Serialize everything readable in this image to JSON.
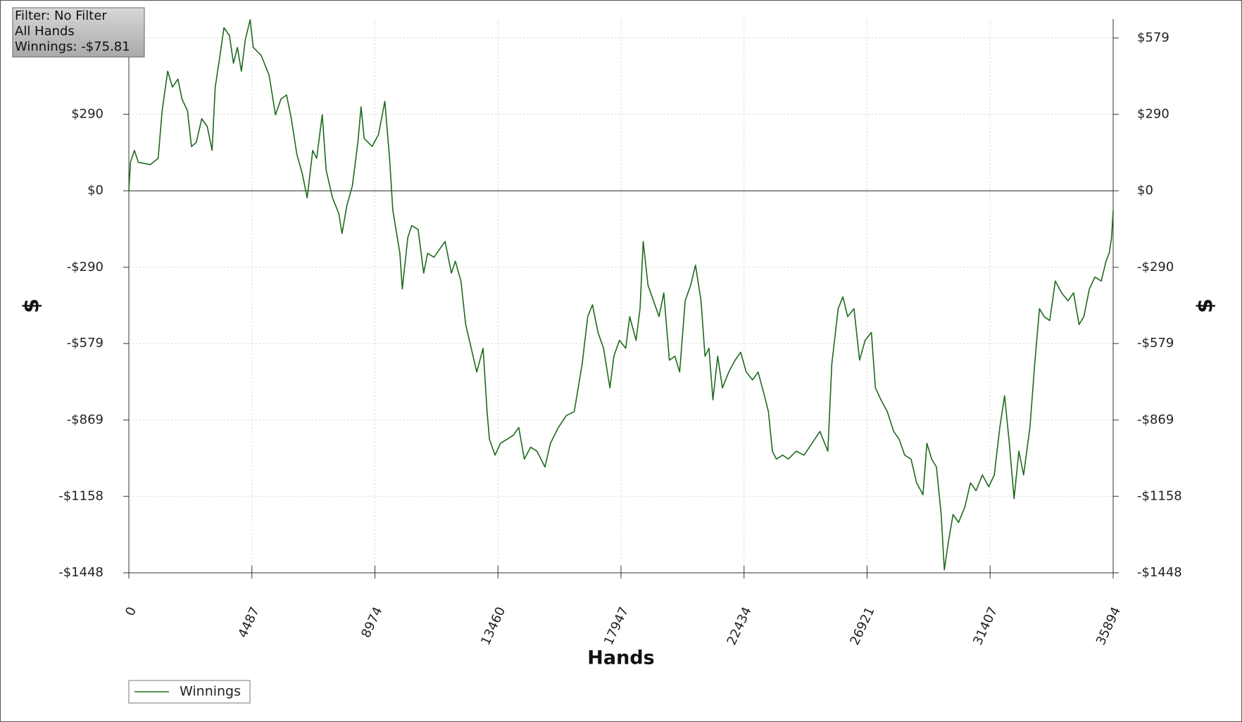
{
  "chart_data": {
    "type": "line",
    "info_box": [
      "Filter: No Filter",
      "All Hands",
      "Winnings: -$75.81"
    ],
    "xlabel": "Hands",
    "ylabel": "$",
    "y2label": "$",
    "xlim": [
      0,
      35894
    ],
    "xticks": [
      0,
      4487,
      8974,
      13460,
      17947,
      22434,
      26921,
      31407,
      35894
    ],
    "ylim": [
      -1448,
      651
    ],
    "yticks": [
      {
        "value": 579,
        "label": "$579"
      },
      {
        "value": 290,
        "label": "$290"
      },
      {
        "value": 0,
        "label": "$0"
      },
      {
        "value": -290,
        "label": "-$290"
      },
      {
        "value": -579,
        "label": "-$579"
      },
      {
        "value": -869,
        "label": "-$869"
      },
      {
        "value": -1158,
        "label": "-$1158"
      },
      {
        "value": -1448,
        "label": "-$1448"
      }
    ],
    "grid": true,
    "zero_line": true,
    "legend": "bottom-left",
    "x": [
      0,
      58,
      202,
      347,
      780,
      1069,
      1214,
      1416,
      1590,
      1792,
      1936,
      2139,
      2283,
      2457,
      2659,
      2861,
      3035,
      3150,
      3324,
      3468,
      3670,
      3815,
      3959,
      4104,
      4248,
      4422,
      4537,
      4826,
      5115,
      5347,
      5549,
      5751,
      5925,
      6127,
      6329,
      6503,
      6705,
      6849,
      7052,
      7196,
      7427,
      7659,
      7774,
      7948,
      8150,
      8352,
      8468,
      8583,
      8872,
      9104,
      9335,
      9508,
      9624,
      9884,
      9971,
      10173,
      10317,
      10549,
      10751,
      10895,
      11127,
      11329,
      11531,
      11762,
      11907,
      12109,
      12283,
      12485,
      12687,
      12918,
      13063,
      13150,
      13352,
      13554,
      13785,
      14017,
      14219,
      14421,
      14652,
      14884,
      15173,
      15375,
      15664,
      15953,
      16242,
      16531,
      16733,
      16907,
      17109,
      17311,
      17542,
      17687,
      17889,
      18120,
      18265,
      18496,
      18641,
      18756,
      18930,
      19132,
      19334,
      19508,
      19710,
      19912,
      20086,
      20288,
      20490,
      20664,
      20866,
      21010,
      21155,
      21299,
      21473,
      21646,
      21877,
      22109,
      22311,
      22513,
      22744,
      22947,
      23178,
      23322,
      23467,
      23611,
      23843,
      24045,
      24334,
      24623,
      24912,
      25201,
      25490,
      25634,
      25866,
      26039,
      26212,
      26444,
      26646,
      26848,
      27079,
      27224,
      27426,
      27657,
      27889,
      28091,
      28293,
      28524,
      28727,
      28958,
      29102,
      29276,
      29449,
      29623,
      29738,
      29883,
      30056,
      30258,
      30490,
      30692,
      30894,
      31125,
      31357,
      31559,
      31761,
      31935,
      32108,
      32281,
      32455,
      32628,
      32859,
      33033,
      33206,
      33380,
      33582,
      33784,
      34015,
      34247,
      34449,
      34651,
      34825,
      35027,
      35229,
      35460,
      35634,
      35749,
      35836,
      35894
    ],
    "series": [
      {
        "name": "Winnings",
        "color": "#1d6a1d",
        "values": [
          0,
          108,
          153,
          108,
          99,
          123,
          303,
          453,
          393,
          423,
          348,
          303,
          168,
          183,
          273,
          243,
          153,
          393,
          513,
          618,
          588,
          483,
          543,
          453,
          573,
          648,
          543,
          513,
          438,
          288,
          348,
          363,
          273,
          138,
          63,
          -27,
          153,
          123,
          288,
          78,
          -27,
          -87,
          -162,
          -57,
          18,
          183,
          318,
          198,
          168,
          213,
          339,
          123,
          -72,
          -237,
          -372,
          -177,
          -132,
          -147,
          -312,
          -237,
          -252,
          -222,
          -192,
          -312,
          -267,
          -342,
          -507,
          -597,
          -687,
          -597,
          -837,
          -942,
          -1002,
          -957,
          -942,
          -927,
          -897,
          -1017,
          -972,
          -987,
          -1047,
          -957,
          -897,
          -852,
          -837,
          -657,
          -477,
          -432,
          -537,
          -597,
          -747,
          -627,
          -567,
          -597,
          -477,
          -567,
          -447,
          -192,
          -357,
          -417,
          -477,
          -387,
          -642,
          -627,
          -687,
          -417,
          -357,
          -282,
          -417,
          -627,
          -597,
          -792,
          -627,
          -747,
          -687,
          -642,
          -612,
          -687,
          -717,
          -687,
          -777,
          -837,
          -987,
          -1017,
          -1002,
          -1017,
          -987,
          -1002,
          -957,
          -912,
          -987,
          -657,
          -447,
          -402,
          -477,
          -447,
          -642,
          -567,
          -537,
          -747,
          -792,
          -837,
          -912,
          -942,
          -1002,
          -1017,
          -1107,
          -1152,
          -957,
          -1017,
          -1047,
          -1227,
          -1437,
          -1332,
          -1227,
          -1257,
          -1197,
          -1107,
          -1137,
          -1077,
          -1122,
          -1077,
          -897,
          -777,
          -957,
          -1167,
          -987,
          -1077,
          -897,
          -657,
          -447,
          -477,
          -492,
          -342,
          -387,
          -417,
          -387,
          -507,
          -477,
          -372,
          -327,
          -342,
          -267,
          -237,
          -177,
          -75.81
        ]
      }
    ]
  }
}
